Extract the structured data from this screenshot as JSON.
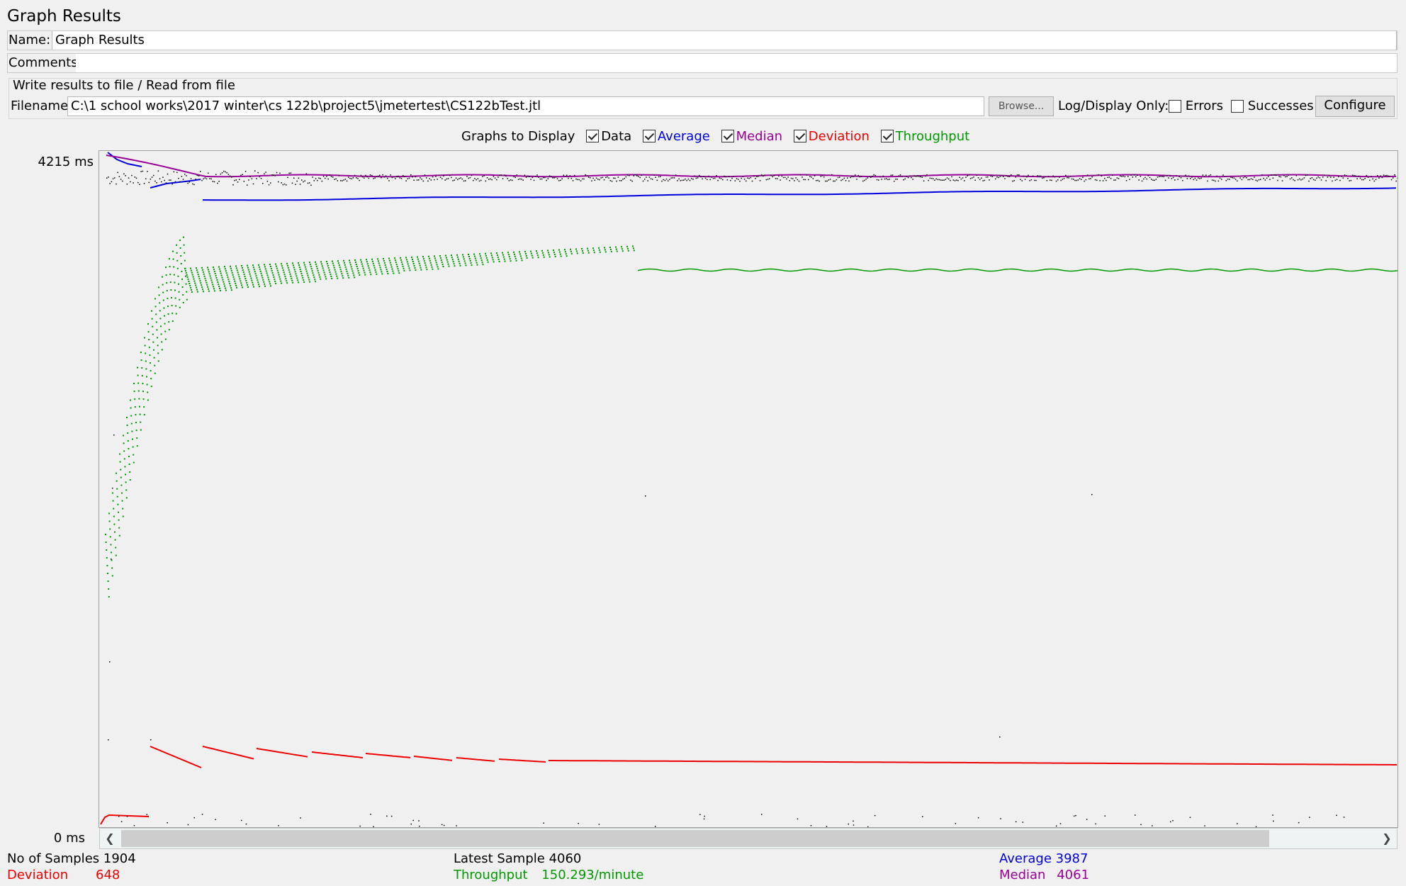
{
  "panel_title": "Graph Results",
  "name_label": "Name:",
  "name_value": "Graph Results",
  "comments_label": "Comments:",
  "comments_value": "",
  "file_section": {
    "title": "Write results to file / Read from file",
    "filename_label": "Filename",
    "filename_value": "C:\\1 school works\\2017 winter\\cs 122b\\project5\\jmetertest\\CS122bTest.jtl",
    "browse_label": "Browse...",
    "log_display_label": "Log/Display Only:",
    "errors_label": "Errors",
    "errors_checked": false,
    "successes_label": "Successes",
    "successes_checked": false,
    "configure_label": "Configure"
  },
  "graphs_to_display": {
    "label": "Graphs to Display",
    "items": [
      {
        "label": "Data",
        "checked": true,
        "color": "#000000"
      },
      {
        "label": "Average",
        "checked": true,
        "color": "#0000dd"
      },
      {
        "label": "Median",
        "checked": true,
        "color": "#990099"
      },
      {
        "label": "Deviation",
        "checked": true,
        "color": "#ee0000"
      },
      {
        "label": "Throughput",
        "checked": true,
        "color": "#009900"
      }
    ]
  },
  "y_axis": {
    "max_label": "4215 ms",
    "min_label": "0 ms",
    "max_ms": 4215
  },
  "stats": {
    "samples_label": "No of Samples",
    "samples_value": "1904",
    "latest_label": "Latest Sample",
    "latest_value": "4060",
    "average_label": "Average",
    "average_value": "3987",
    "deviation_label": "Deviation",
    "deviation_value": "648",
    "throughput_label": "Throughput",
    "throughput_value": "150.293/minute",
    "median_label": "Median",
    "median_value": "4061"
  },
  "colors": {
    "data": "#000000",
    "average": "#0000dd",
    "median": "#990099",
    "deviation": "#ee0000",
    "throughput": "#009900"
  },
  "chart_data": {
    "type": "line",
    "ylim": [
      0,
      4215
    ],
    "samples": 1904,
    "series": [
      {
        "name": "Average",
        "final": 3987
      },
      {
        "name": "Median",
        "final": 4061
      },
      {
        "name": "Deviation",
        "final": 648
      },
      {
        "name": "Throughput",
        "final": "150.293/minute"
      }
    ]
  }
}
